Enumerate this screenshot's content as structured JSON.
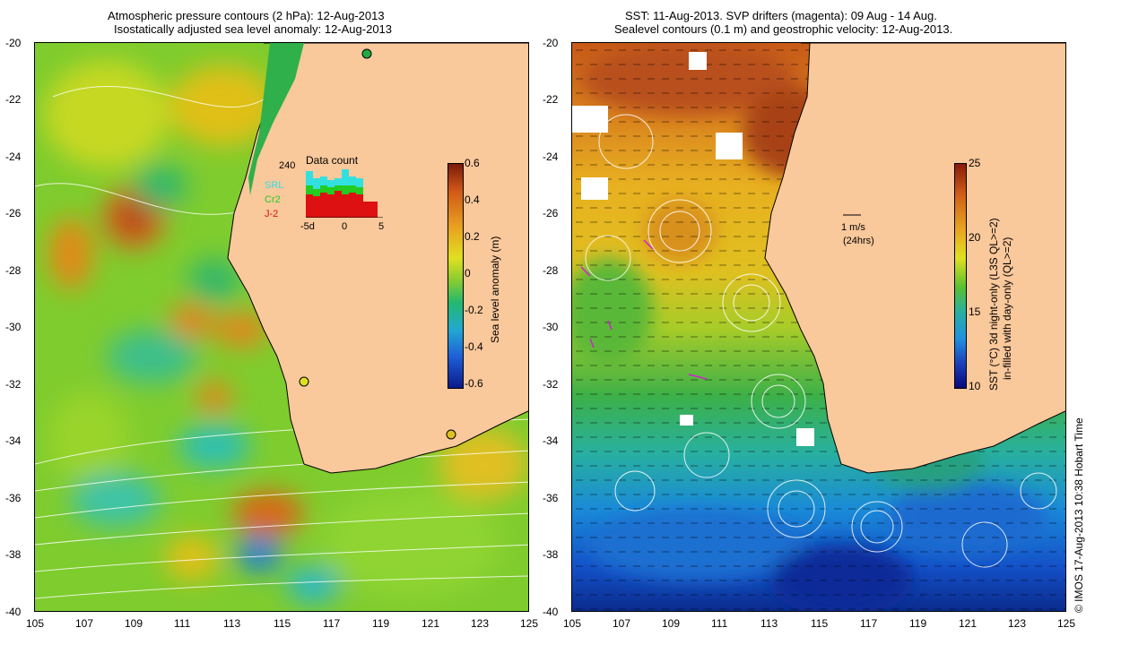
{
  "left_panel": {
    "title_line1": "Atmospheric pressure contours (2 hPa): 12-Aug-2013",
    "title_line2": "Isostatically adjusted sea level anomaly: 12-Aug-2013",
    "y_ticks": [
      "-20",
      "-22",
      "-24",
      "-26",
      "-28",
      "-30",
      "-32",
      "-34",
      "-36",
      "-38",
      "-40"
    ],
    "x_ticks": [
      "105",
      "107",
      "109",
      "111",
      "113",
      "115",
      "117",
      "119",
      "121",
      "123",
      "125"
    ],
    "colorbar": {
      "label": "Sea level anomaly (m)",
      "ticks": [
        "0.6",
        "0.4",
        "0.2",
        "0",
        "-0.2",
        "-0.4",
        "-0.6"
      ]
    },
    "inset": {
      "title": "Data count",
      "count_label": "240",
      "legend": [
        {
          "name": "SRL",
          "color": "#33e0e0"
        },
        {
          "name": "Cr2",
          "color": "#22cc22"
        },
        {
          "name": "J-2",
          "color": "#dd1111"
        }
      ],
      "x_ticks": [
        "-5d",
        "0",
        "5"
      ]
    }
  },
  "right_panel": {
    "title_line1": "SST: 11-Aug-2013. SVP drifters (magenta): 09 Aug - 14 Aug.",
    "title_line2": "Sealevel contours (0.1 m) and geostrophic velocity: 12-Aug-2013.",
    "y_ticks": [
      "-20",
      "-22",
      "-24",
      "-26",
      "-28",
      "-30",
      "-32",
      "-34",
      "-36",
      "-38",
      "-40"
    ],
    "x_ticks": [
      "105",
      "107",
      "109",
      "111",
      "113",
      "115",
      "117",
      "119",
      "121",
      "123",
      "125"
    ],
    "velocity_scale": {
      "value": "1 m/s",
      "period": "(24hrs)"
    },
    "colorbar": {
      "label_line1": "SST (°C) 3d night-only (L3S QL>=2)",
      "label_line2": "in-filled with day-only (QL>=2)",
      "ticks": [
        "25",
        "20",
        "15",
        "10"
      ]
    }
  },
  "credit": "© IMOS 17-Aug-2013 10:38 Hobart Time",
  "colors": {
    "land": "#f9c89b",
    "coast": "#000000"
  }
}
